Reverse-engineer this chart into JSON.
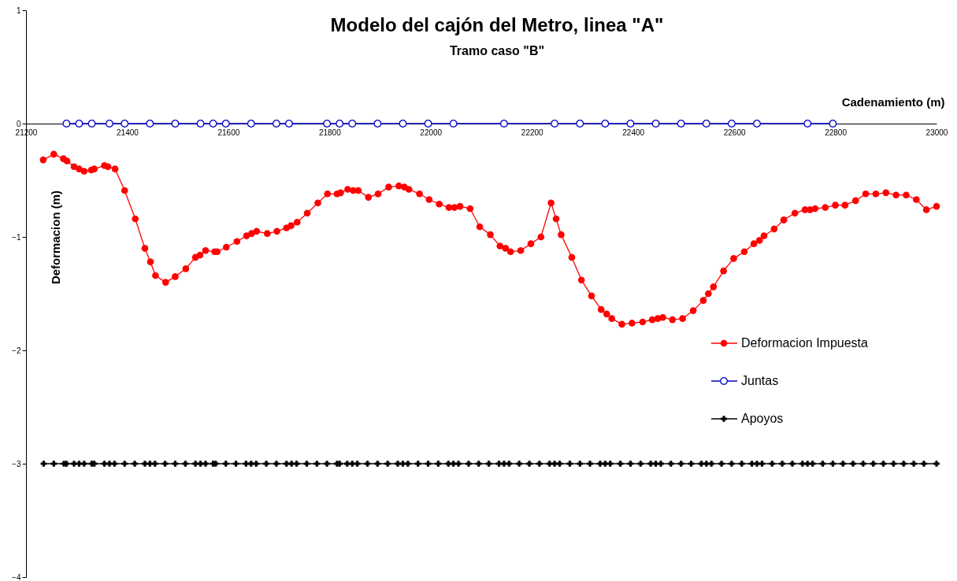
{
  "chart_data": {
    "type": "line",
    "title": "Modelo del cajón del Metro, linea \"A\"",
    "subtitle": "Tramo caso \"B\"",
    "xlabel": "Cadenamiento (m)",
    "ylabel": "Deformacion (m)",
    "xlim": [
      21200,
      23000
    ],
    "xticks": [
      21200,
      21400,
      21600,
      21800,
      22000,
      22200,
      22400,
      22600,
      22800,
      23000
    ],
    "ylim": [
      -4,
      1
    ],
    "yticks": [
      -4,
      -3,
      -2,
      -1,
      0,
      1
    ],
    "grid": false,
    "legend": "right",
    "line_style": "solid",
    "series": [
      {
        "name": "Deformacion Impuesta",
        "color": "#ff0000",
        "marker": "circle",
        "x": [
          21234,
          21255,
          21274,
          21281,
          21295,
          21305,
          21315,
          21329,
          21335,
          21355,
          21362,
          21376,
          21395,
          21416,
          21435,
          21446,
          21456,
          21476,
          21495,
          21516,
          21535,
          21544,
          21555,
          21573,
          21578,
          21596,
          21617,
          21636,
          21646,
          21656,
          21677,
          21696,
          21715,
          21724,
          21736,
          21756,
          21777,
          21796,
          21815,
          21822,
          21836,
          21847,
          21857,
          21877,
          21896,
          21917,
          21937,
          21948,
          21957,
          21978,
          21997,
          22017,
          22036,
          22047,
          22058,
          22078,
          22097,
          22118,
          22137,
          22148,
          22158,
          22178,
          22198,
          22218,
          22238,
          22248,
          22258,
          22279,
          22298,
          22318,
          22337,
          22348,
          22358,
          22378,
          22398,
          22419,
          22438,
          22449,
          22459,
          22478,
          22498,
          22519,
          22539,
          22549,
          22559,
          22579,
          22599,
          22620,
          22639,
          22650,
          22659,
          22679,
          22698,
          22720,
          22740,
          22750,
          22760,
          22780,
          22800,
          22819,
          22840,
          22860,
          22880,
          22900,
          22920,
          22940,
          22960,
          22980,
          23000
        ],
        "values": [
          -0.32,
          -0.27,
          -0.31,
          -0.33,
          -0.38,
          -0.4,
          -0.42,
          -0.41,
          -0.4,
          -0.37,
          -0.38,
          -0.4,
          -0.59,
          -0.84,
          -1.1,
          -1.22,
          -1.34,
          -1.4,
          -1.35,
          -1.28,
          -1.18,
          -1.16,
          -1.12,
          -1.13,
          -1.13,
          -1.09,
          -1.04,
          -0.99,
          -0.97,
          -0.95,
          -0.97,
          -0.95,
          -0.92,
          -0.9,
          -0.87,
          -0.79,
          -0.7,
          -0.62,
          -0.62,
          -0.61,
          -0.58,
          -0.59,
          -0.59,
          -0.65,
          -0.62,
          -0.56,
          -0.55,
          -0.56,
          -0.58,
          -0.62,
          -0.67,
          -0.71,
          -0.74,
          -0.74,
          -0.73,
          -0.75,
          -0.91,
          -0.98,
          -1.08,
          -1.1,
          -1.13,
          -1.12,
          -1.06,
          -1.0,
          -0.7,
          -0.84,
          -0.98,
          -1.18,
          -1.38,
          -1.52,
          -1.64,
          -1.68,
          -1.72,
          -1.77,
          -1.76,
          -1.75,
          -1.73,
          -1.72,
          -1.71,
          -1.73,
          -1.72,
          -1.65,
          -1.56,
          -1.5,
          -1.44,
          -1.3,
          -1.19,
          -1.13,
          -1.06,
          -1.03,
          -0.99,
          -0.93,
          -0.85,
          -0.79,
          -0.76,
          -0.76,
          -0.75,
          -0.74,
          -0.72,
          -0.72,
          -0.68,
          -0.62,
          -0.62,
          -0.61,
          -0.63,
          -0.63,
          -0.67,
          -0.76,
          -0.73
        ]
      },
      {
        "name": "Juntas",
        "color": "#0000cc",
        "marker": "circle",
        "x": [
          21280,
          21305,
          21330,
          21365,
          21395,
          21445,
          21495,
          21545,
          21570,
          21595,
          21645,
          21695,
          21720,
          21795,
          21820,
          21845,
          21895,
          21945,
          21995,
          22045,
          22145,
          22245,
          22295,
          22345,
          22395,
          22445,
          22495,
          22545,
          22595,
          22645,
          22745,
          22795
        ],
        "values": [
          0,
          0,
          0,
          0,
          0,
          0,
          0,
          0,
          0,
          0,
          0,
          0,
          0,
          0,
          0,
          0,
          0,
          0,
          0,
          0,
          0,
          0,
          0,
          0,
          0,
          0,
          0,
          0,
          0,
          0,
          0,
          0
        ]
      },
      {
        "name": "Apoyos",
        "color": "#000000",
        "marker": "cross",
        "x": [
          21235,
          21255,
          21275,
          21280,
          21295,
          21305,
          21315,
          21330,
          21335,
          21355,
          21365,
          21375,
          21395,
          21415,
          21435,
          21445,
          21455,
          21475,
          21495,
          21515,
          21535,
          21545,
          21555,
          21570,
          21575,
          21595,
          21615,
          21635,
          21645,
          21655,
          21675,
          21695,
          21715,
          21725,
          21735,
          21755,
          21775,
          21795,
          21815,
          21820,
          21835,
          21845,
          21855,
          21875,
          21895,
          21915,
          21935,
          21945,
          21955,
          21975,
          21995,
          22015,
          22035,
          22045,
          22055,
          22075,
          22095,
          22115,
          22135,
          22145,
          22155,
          22175,
          22195,
          22215,
          22235,
          22245,
          22255,
          22275,
          22295,
          22315,
          22335,
          22345,
          22355,
          22375,
          22395,
          22415,
          22435,
          22445,
          22455,
          22475,
          22495,
          22515,
          22535,
          22545,
          22555,
          22575,
          22595,
          22615,
          22635,
          22645,
          22655,
          22675,
          22695,
          22715,
          22735,
          22745,
          22755,
          22775,
          22795,
          22815,
          22835,
          22855,
          22875,
          22895,
          22915,
          22935,
          22955,
          22975,
          23000
        ],
        "values": [
          -3,
          -3,
          -3,
          -3,
          -3,
          -3,
          -3,
          -3,
          -3,
          -3,
          -3,
          -3,
          -3,
          -3,
          -3,
          -3,
          -3,
          -3,
          -3,
          -3,
          -3,
          -3,
          -3,
          -3,
          -3,
          -3,
          -3,
          -3,
          -3,
          -3,
          -3,
          -3,
          -3,
          -3,
          -3,
          -3,
          -3,
          -3,
          -3,
          -3,
          -3,
          -3,
          -3,
          -3,
          -3,
          -3,
          -3,
          -3,
          -3,
          -3,
          -3,
          -3,
          -3,
          -3,
          -3,
          -3,
          -3,
          -3,
          -3,
          -3,
          -3,
          -3,
          -3,
          -3,
          -3,
          -3,
          -3,
          -3,
          -3,
          -3,
          -3,
          -3,
          -3,
          -3,
          -3,
          -3,
          -3,
          -3,
          -3,
          -3,
          -3,
          -3,
          -3,
          -3,
          -3,
          -3,
          -3,
          -3,
          -3,
          -3,
          -3,
          -3,
          -3,
          -3,
          -3,
          -3,
          -3,
          -3,
          -3,
          -3,
          -3,
          -3,
          -3,
          -3,
          -3,
          -3,
          -3,
          -3,
          -3
        ]
      }
    ]
  }
}
